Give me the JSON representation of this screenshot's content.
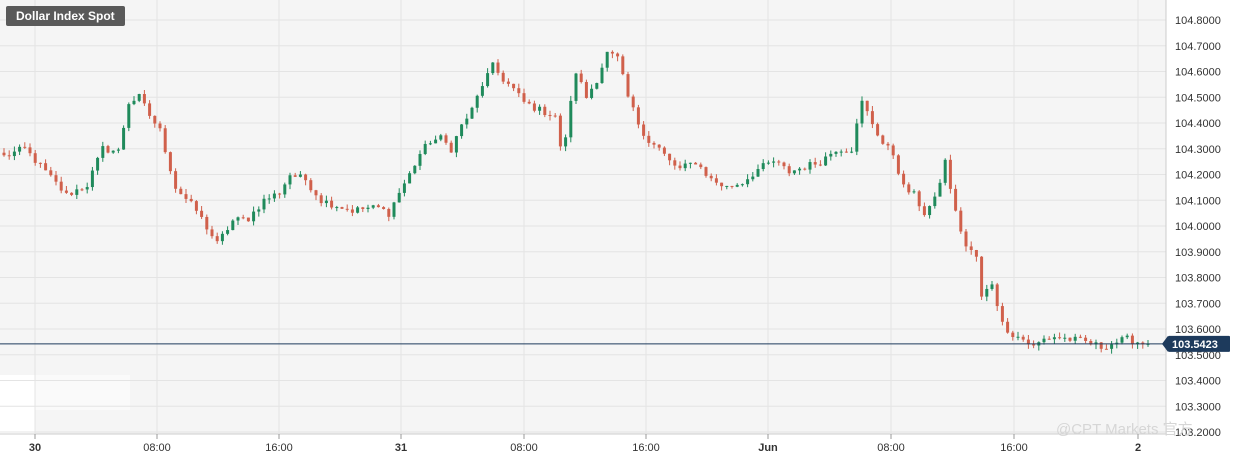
{
  "chart_data": {
    "type": "candlestick",
    "title": "Dollar Index Spot",
    "current_price": 103.5423,
    "current_price_label": "103.5423",
    "ylim": [
      103.2,
      104.85
    ],
    "y_ticks": [
      "104.8000",
      "104.7000",
      "104.6000",
      "104.5000",
      "104.4000",
      "104.3000",
      "104.2000",
      "104.1000",
      "104.0000",
      "103.9000",
      "103.8000",
      "103.7000",
      "103.6000",
      "103.5000",
      "103.4000",
      "103.3000",
      "103.2000"
    ],
    "x_ticks": [
      {
        "label": "30",
        "bold": true
      },
      {
        "label": "08:00",
        "bold": false
      },
      {
        "label": "16:00",
        "bold": false
      },
      {
        "label": "31",
        "bold": true
      },
      {
        "label": "08:00",
        "bold": false
      },
      {
        "label": "16:00",
        "bold": false
      },
      {
        "label": "Jun",
        "bold": true
      },
      {
        "label": "08:00",
        "bold": false
      },
      {
        "label": "16:00",
        "bold": false
      },
      {
        "label": "2",
        "bold": true
      }
    ],
    "colors": {
      "up": "#1f8a5b",
      "down": "#d0604b",
      "price_line": "#1d3a5c",
      "price_tag": "#1d3a5c",
      "grid": "#e4e4e4",
      "plot_bg": "#f5f5f5"
    },
    "close_path": [
      [
        0,
        104.27
      ],
      [
        4,
        104.3
      ],
      [
        8,
        104.21
      ],
      [
        12,
        104.12
      ],
      [
        16,
        104.16
      ],
      [
        19,
        104.3
      ],
      [
        22,
        104.29
      ],
      [
        24,
        104.48
      ],
      [
        26,
        104.5
      ],
      [
        28,
        104.43
      ],
      [
        30,
        104.37
      ],
      [
        33,
        104.15
      ],
      [
        37,
        104.06
      ],
      [
        41,
        103.93
      ],
      [
        44,
        104.02
      ],
      [
        47,
        104.03
      ],
      [
        50,
        104.1
      ],
      [
        53,
        104.13
      ],
      [
        55,
        104.2
      ],
      [
        58,
        104.18
      ],
      [
        61,
        104.1
      ],
      [
        64,
        104.08
      ],
      [
        67,
        104.06
      ],
      [
        70,
        104.07
      ],
      [
        72,
        104.07
      ],
      [
        74,
        104.05
      ],
      [
        76,
        104.13
      ],
      [
        78,
        104.2
      ],
      [
        80,
        104.28
      ],
      [
        82,
        104.33
      ],
      [
        84,
        104.34
      ],
      [
        86,
        104.3
      ],
      [
        88,
        104.39
      ],
      [
        90,
        104.45
      ],
      [
        92,
        104.55
      ],
      [
        94,
        104.62
      ],
      [
        96,
        104.57
      ],
      [
        98,
        104.53
      ],
      [
        100,
        104.48
      ],
      [
        103,
        104.45
      ],
      [
        106,
        104.43
      ],
      [
        107,
        104.3
      ],
      [
        108,
        104.35
      ],
      [
        110,
        104.6
      ],
      [
        112,
        104.5
      ],
      [
        114,
        104.57
      ],
      [
        116,
        104.67
      ],
      [
        118,
        104.65
      ],
      [
        120,
        104.5
      ],
      [
        122,
        104.4
      ],
      [
        124,
        104.33
      ],
      [
        126,
        104.3
      ],
      [
        128,
        104.25
      ],
      [
        130,
        104.22
      ],
      [
        133,
        104.25
      ],
      [
        136,
        104.18
      ],
      [
        139,
        104.15
      ],
      [
        142,
        104.17
      ],
      [
        145,
        104.22
      ],
      [
        148,
        104.25
      ],
      [
        151,
        104.21
      ],
      [
        154,
        104.23
      ],
      [
        157,
        104.25
      ],
      [
        160,
        104.3
      ],
      [
        163,
        104.3
      ],
      [
        165,
        104.48
      ],
      [
        167,
        104.4
      ],
      [
        169,
        104.32
      ],
      [
        171,
        104.28
      ],
      [
        173,
        104.15
      ],
      [
        175,
        104.12
      ],
      [
        177,
        104.05
      ],
      [
        179,
        104.1
      ],
      [
        181,
        104.25
      ],
      [
        183,
        104.05
      ],
      [
        185,
        103.92
      ],
      [
        187,
        103.88
      ],
      [
        188,
        103.72
      ],
      [
        190,
        103.78
      ],
      [
        192,
        103.62
      ],
      [
        194,
        103.58
      ],
      [
        196,
        103.56
      ],
      [
        198,
        103.53
      ],
      [
        200,
        103.56
      ],
      [
        202,
        103.57
      ],
      [
        205,
        103.56
      ],
      [
        208,
        103.55
      ],
      [
        211,
        103.53
      ],
      [
        214,
        103.55
      ],
      [
        216,
        103.56
      ],
      [
        218,
        103.55
      ],
      [
        220,
        103.54
      ]
    ],
    "bar_count": 221
  },
  "watermark": "@CPT Markets 官方"
}
